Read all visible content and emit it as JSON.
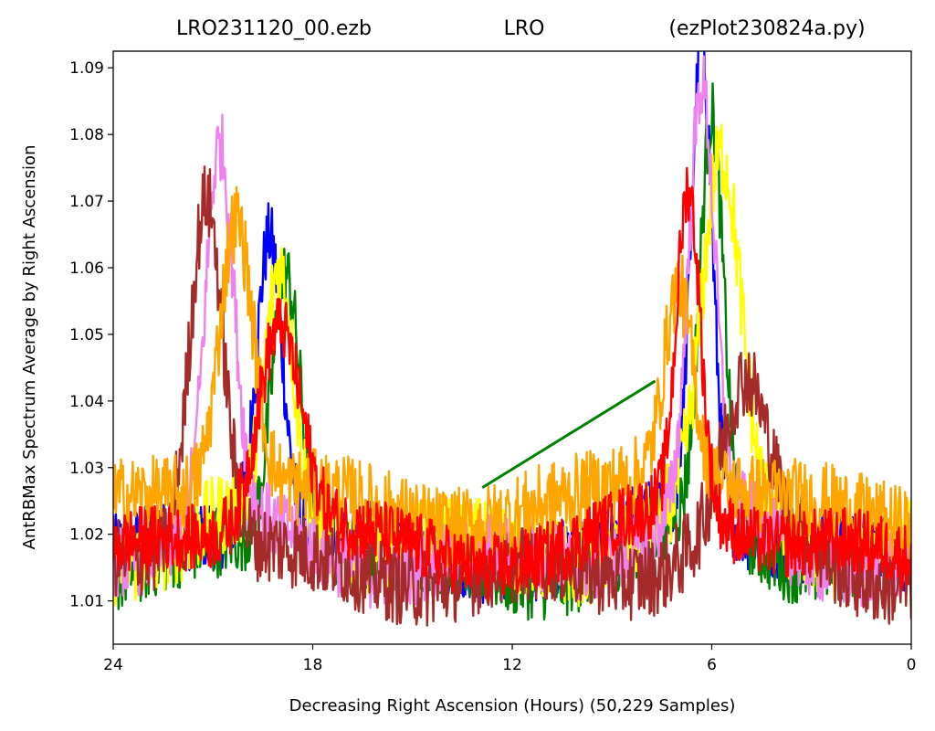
{
  "chart_data": {
    "type": "line",
    "title_left": "LRO231120_00.ezb",
    "title_center": "LRO",
    "title_right": "(ezPlot230824a.py)",
    "xlabel": "Decreasing Right Ascension (Hours) (50,229 Samples)",
    "ylabel": "AntRBMax Spectrum Average by Right Ascension",
    "xlim": [
      24,
      0
    ],
    "ylim": [
      1.0035,
      1.0925
    ],
    "x_ticks": [
      24,
      18,
      12,
      6,
      0
    ],
    "x_tick_labels": [
      "24",
      "18",
      "12",
      "6",
      "0"
    ],
    "y_ticks": [
      1.01,
      1.02,
      1.03,
      1.04,
      1.05,
      1.06,
      1.07,
      1.08,
      1.09
    ],
    "y_tick_labels": [
      "1.01",
      "1.02",
      "1.03",
      "1.04",
      "1.05",
      "1.06",
      "1.07",
      "1.08",
      "1.09"
    ],
    "grid": false,
    "legend": "none",
    "series": [
      {
        "color": "#0000ff",
        "base": 1.0165,
        "peak1": {
          "x": 19.3,
          "h": 0.044,
          "w": 0.55
        },
        "peak2": {
          "x": 6.3,
          "h": 0.07,
          "w": 0.45
        },
        "noise": 0.0055
      },
      {
        "color": "#008000",
        "base": 1.0145,
        "peak1": {
          "x": 18.8,
          "h": 0.04,
          "w": 0.6
        },
        "peak2": {
          "x": 6.0,
          "h": 0.06,
          "w": 0.5
        },
        "noise": 0.0055
      },
      {
        "color": "#ffff00",
        "base": 1.0175,
        "peak1": {
          "x": 19.0,
          "h": 0.036,
          "w": 0.6
        },
        "peak2": {
          "x": 5.7,
          "h": 0.05,
          "w": 0.8
        },
        "noise": 0.0065
      },
      {
        "color": "#ee82ee",
        "base": 1.016,
        "peak1": {
          "x": 20.8,
          "h": 0.056,
          "w": 0.6
        },
        "peak2": {
          "x": 6.3,
          "h": 0.062,
          "w": 0.55
        },
        "noise": 0.0055
      },
      {
        "color": "#a52a2a",
        "base": 1.014,
        "peak1": {
          "x": 21.2,
          "h": 0.052,
          "w": 0.7
        },
        "peak2": {
          "x": 5.0,
          "h": 0.02,
          "w": 0.9
        },
        "noise": 0.006
      },
      {
        "color": "#ffa500",
        "base": 1.023,
        "peak1": {
          "x": 20.3,
          "h": 0.04,
          "w": 0.7
        },
        "peak2": {
          "x": 7.0,
          "h": 0.028,
          "w": 0.6
        },
        "noise": 0.006
      },
      {
        "color": "#ff0000",
        "base": 1.017,
        "peak1": {
          "x": 19.0,
          "h": 0.03,
          "w": 0.9
        },
        "peak2": {
          "x": 6.7,
          "h": 0.048,
          "w": 0.5
        },
        "noise": 0.005
      }
    ],
    "green_segment": {
      "color": "#008000",
      "x": [
        12.9,
        7.7
      ],
      "y": [
        1.027,
        1.043
      ]
    }
  }
}
